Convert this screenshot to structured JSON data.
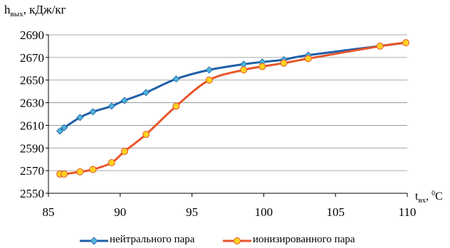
{
  "chart_data": {
    "type": "line",
    "ylabel": {
      "main": "h",
      "sub": "вых",
      "unit": ", кДж/кг"
    },
    "xlabel": {
      "main": "t",
      "sub": "вх",
      "sep": ", ",
      "sup": "0",
      "unit": "C"
    },
    "xlim": [
      85,
      110
    ],
    "ylim": [
      2550,
      2690
    ],
    "xticks": [
      85,
      90,
      95,
      100,
      105,
      110
    ],
    "yticks": [
      2550,
      2570,
      2590,
      2610,
      2630,
      2650,
      2670,
      2690
    ],
    "grid": "horizontal",
    "legend_position": "bottom",
    "series": [
      {
        "name": "нейтрального пара",
        "color": "#1f5fa8",
        "marker": "diamond",
        "marker_color": "#4fb3d9",
        "x": [
          85.8,
          86.1,
          87.2,
          88.1,
          89.4,
          90.3,
          91.8,
          93.9,
          96.2,
          98.6,
          99.9,
          101.4,
          103.1,
          109.9
        ],
        "y": [
          2605,
          2608,
          2617,
          2622,
          2627,
          2632,
          2639,
          2651,
          2659,
          2664,
          2666,
          2668,
          2672,
          2683
        ]
      },
      {
        "name": "ионизированного пара",
        "color": "#e8552a",
        "marker": "circle",
        "marker_color": "#ffd21f",
        "x": [
          85.8,
          86.1,
          87.2,
          88.1,
          89.4,
          90.3,
          91.8,
          93.9,
          96.2,
          98.6,
          99.9,
          101.4,
          103.1,
          108.1,
          109.9
        ],
        "y": [
          2567,
          2567,
          2569,
          2571,
          2577,
          2587,
          2602,
          2627,
          2650,
          2659,
          2662,
          2665,
          2669,
          2680,
          2683
        ]
      }
    ]
  }
}
